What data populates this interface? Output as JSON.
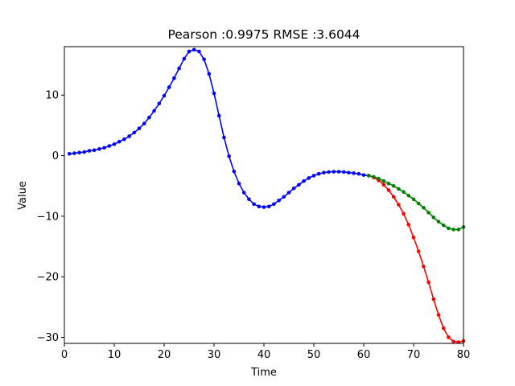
{
  "chart_data": {
    "type": "line",
    "title": "Pearson :0.9975  RMSE :3.6044",
    "xlabel": "Time",
    "ylabel": "Value",
    "xlim": [
      0,
      80
    ],
    "ylim": [
      -31,
      18
    ],
    "xticks": [
      0,
      10,
      20,
      30,
      40,
      50,
      60,
      70,
      80
    ],
    "yticks": [
      -30,
      -20,
      -10,
      0,
      10
    ],
    "grid": false,
    "series": [
      {
        "color": "#0000ff",
        "x": [
          1,
          2,
          3,
          4,
          5,
          6,
          7,
          8,
          9,
          10,
          11,
          12,
          13,
          14,
          15,
          16,
          17,
          18,
          19,
          20,
          21,
          22,
          23,
          24,
          25,
          26,
          27,
          28,
          29,
          30,
          31,
          32,
          33,
          34,
          35,
          36,
          37,
          38,
          39,
          40,
          41,
          42,
          43,
          44,
          45,
          46,
          47,
          48,
          49,
          50,
          51,
          52,
          53,
          54,
          55,
          56,
          57,
          58,
          59,
          60,
          61
        ],
        "y": [
          0.3,
          0.4,
          0.5,
          0.6,
          0.8,
          0.9,
          1.1,
          1.3,
          1.6,
          1.9,
          2.3,
          2.7,
          3.2,
          3.8,
          4.5,
          5.3,
          6.3,
          7.4,
          8.6,
          9.9,
          11.3,
          12.8,
          14.4,
          16.0,
          17.2,
          17.5,
          17.2,
          15.9,
          13.5,
          10.3,
          6.6,
          3.0,
          -0.1,
          -2.6,
          -4.6,
          -6.1,
          -7.2,
          -8.0,
          -8.4,
          -8.5,
          -8.4,
          -8.0,
          -7.4,
          -6.8,
          -6.1,
          -5.4,
          -4.8,
          -4.2,
          -3.7,
          -3.3,
          -3.0,
          -2.8,
          -2.7,
          -2.65,
          -2.65,
          -2.7,
          -2.8,
          -2.9,
          -3.0,
          -3.2,
          -3.3
        ]
      },
      {
        "color": "#ff0000",
        "x": [
          61,
          62,
          63,
          64,
          65,
          66,
          67,
          68,
          69,
          70,
          71,
          72,
          73,
          74,
          75,
          76,
          77,
          78,
          79,
          80
        ],
        "y": [
          -3.3,
          -3.6,
          -4.1,
          -4.8,
          -5.7,
          -6.8,
          -8.1,
          -9.6,
          -11.4,
          -13.5,
          -15.8,
          -18.3,
          -20.9,
          -23.7,
          -26.3,
          -28.5,
          -30.0,
          -30.7,
          -30.8,
          -30.6
        ]
      },
      {
        "color": "#008000",
        "x": [
          61,
          62,
          63,
          64,
          65,
          66,
          67,
          68,
          69,
          70,
          71,
          72,
          73,
          74,
          75,
          76,
          77,
          78,
          79,
          80
        ],
        "y": [
          -3.3,
          -3.5,
          -3.8,
          -4.2,
          -4.6,
          -5.0,
          -5.5,
          -6.0,
          -6.6,
          -7.2,
          -7.9,
          -8.6,
          -9.4,
          -10.2,
          -10.9,
          -11.5,
          -12.0,
          -12.2,
          -12.2,
          -11.8
        ]
      }
    ]
  }
}
